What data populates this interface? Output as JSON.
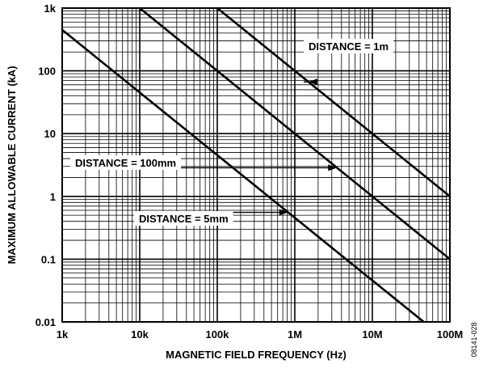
{
  "chart_data": {
    "type": "line",
    "xlabel": "MAGNETIC FIELD FREQUENCY (Hz)",
    "ylabel": "MAXIMUM ALLOWABLE CURRENT (kA)",
    "x_scale": "log",
    "y_scale": "log",
    "xlim": [
      1000,
      100000000
    ],
    "ylim": [
      0.01,
      1000
    ],
    "x_ticks": [
      {
        "value": 1000,
        "label": "1k"
      },
      {
        "value": 10000,
        "label": "10k"
      },
      {
        "value": 100000,
        "label": "100k"
      },
      {
        "value": 1000000,
        "label": "1M"
      },
      {
        "value": 10000000,
        "label": "10M"
      },
      {
        "value": 100000000,
        "label": "100M"
      }
    ],
    "y_ticks": [
      {
        "value": 0.01,
        "label": "0.01"
      },
      {
        "value": 0.1,
        "label": "0.1"
      },
      {
        "value": 1,
        "label": "1"
      },
      {
        "value": 10,
        "label": "10"
      },
      {
        "value": 100,
        "label": "100"
      },
      {
        "value": 1000,
        "label": "1k"
      }
    ],
    "grid": true,
    "series": [
      {
        "name": "DISTANCE = 1m",
        "x": [
          100000,
          100000000
        ],
        "y": [
          1000,
          1
        ]
      },
      {
        "name": "DISTANCE = 100mm",
        "x": [
          10000,
          100000000
        ],
        "y": [
          1000,
          0.1
        ]
      },
      {
        "name": "DISTANCE = 5mm",
        "x": [
          1000,
          46000000
        ],
        "y": [
          450,
          0.01
        ]
      }
    ],
    "annotations": [
      {
        "text": "DISTANCE = 1m",
        "series": 0,
        "arrow_to_x": 1500000
      },
      {
        "text": "DISTANCE = 100mm",
        "series": 1,
        "arrow_to_x": 3500000
      },
      {
        "text": "DISTANCE = 5mm",
        "series": 2,
        "arrow_to_x": 820000
      }
    ]
  },
  "figure_id": "08141-028"
}
